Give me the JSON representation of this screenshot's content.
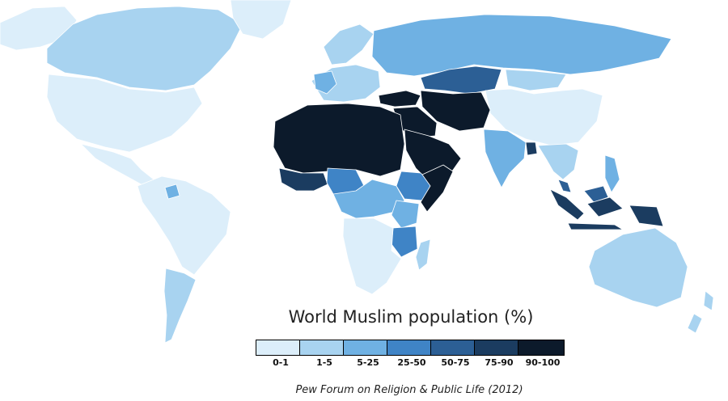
{
  "map": {
    "title": "World Muslim population (%)",
    "source": "Pew Forum on Religion & Public Life (2012)",
    "legend": [
      {
        "label": "0-1",
        "color": "#dceefa"
      },
      {
        "label": "1-5",
        "color": "#a8d3f0"
      },
      {
        "label": "5-25",
        "color": "#6fb1e3"
      },
      {
        "label": "25-50",
        "color": "#3f84c6"
      },
      {
        "label": "50-75",
        "color": "#2c5f95"
      },
      {
        "label": "75-90",
        "color": "#1b3c60"
      },
      {
        "label": "90-100",
        "color": "#0c1a2b"
      }
    ],
    "regions": [
      {
        "name": "North America",
        "category": "0-1"
      },
      {
        "name": "Canada",
        "category": "1-5"
      },
      {
        "name": "Alaska",
        "category": "0-1"
      },
      {
        "name": "Greenland",
        "category": "0-1"
      },
      {
        "name": "Central America",
        "category": "0-1"
      },
      {
        "name": "South America",
        "category": "0-1"
      },
      {
        "name": "Suriname",
        "category": "5-25"
      },
      {
        "name": "Argentina",
        "category": "1-5"
      },
      {
        "name": "Western Europe",
        "category": "1-5"
      },
      {
        "name": "France",
        "category": "5-25"
      },
      {
        "name": "Scandinavia",
        "category": "1-5"
      },
      {
        "name": "Russia",
        "category": "5-25"
      },
      {
        "name": "Kazakhstan",
        "category": "50-75"
      },
      {
        "name": "Mongolia",
        "category": "1-5"
      },
      {
        "name": "China",
        "category": "0-1"
      },
      {
        "name": "Turkey",
        "category": "90-100"
      },
      {
        "name": "Central Asia",
        "category": "90-100"
      },
      {
        "name": "Middle East",
        "category": "90-100"
      },
      {
        "name": "Arabian Peninsula",
        "category": "90-100"
      },
      {
        "name": "North Africa",
        "category": "90-100"
      },
      {
        "name": "Sahel",
        "category": "75-90"
      },
      {
        "name": "Nigeria",
        "category": "25-50"
      },
      {
        "name": "Ethiopia",
        "category": "25-50"
      },
      {
        "name": "Somalia",
        "category": "90-100"
      },
      {
        "name": "Central Africa",
        "category": "5-25"
      },
      {
        "name": "Kenya",
        "category": "5-25"
      },
      {
        "name": "Tanzania",
        "category": "25-50"
      },
      {
        "name": "Southern Africa",
        "category": "0-1"
      },
      {
        "name": "Madagascar",
        "category": "1-5"
      },
      {
        "name": "India",
        "category": "5-25"
      },
      {
        "name": "Bangladesh",
        "category": "75-90"
      },
      {
        "name": "Southeast Asia",
        "category": "1-5"
      },
      {
        "name": "Malaysia",
        "category": "50-75"
      },
      {
        "name": "Indonesia",
        "category": "75-90"
      },
      {
        "name": "Philippines",
        "category": "5-25"
      },
      {
        "name": "Australia",
        "category": "1-5"
      },
      {
        "name": "New Zealand",
        "category": "1-5"
      }
    ]
  }
}
